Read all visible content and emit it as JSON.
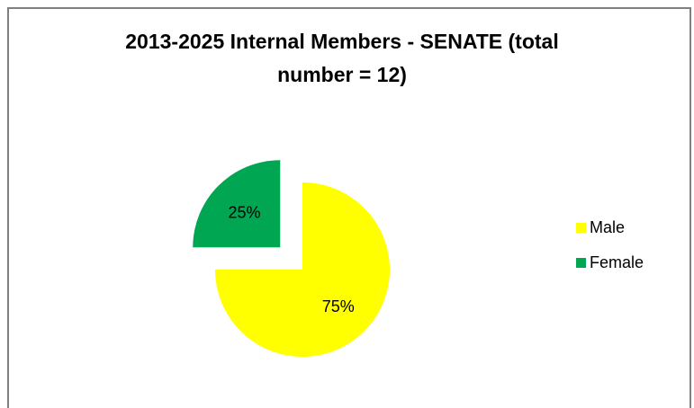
{
  "chart_data": {
    "type": "pie",
    "title_lines": [
      "2013-2025 Internal Members - SENATE (total",
      "number = 12)"
    ],
    "categories": [
      "Male",
      "Female"
    ],
    "values": [
      75,
      25
    ],
    "labels": [
      "75%",
      "25%"
    ],
    "colors": [
      "#FFFF00",
      "#00A651"
    ],
    "exploded": [
      "Female"
    ],
    "legend_position": "right"
  }
}
